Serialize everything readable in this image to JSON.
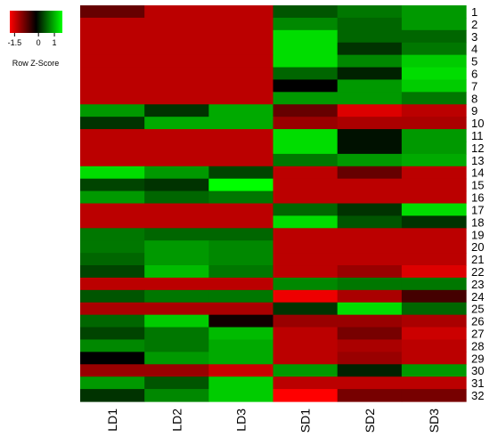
{
  "chart_data": {
    "type": "heatmap",
    "title": "",
    "columns": [
      "LD1",
      "LD2",
      "LD3",
      "SD1",
      "SD2",
      "SD3"
    ],
    "rows": [
      "1",
      "2",
      "3",
      "4",
      "5",
      "6",
      "7",
      "8",
      "9",
      "10",
      "11",
      "12",
      "13",
      "14",
      "15",
      "16",
      "17",
      "18",
      "19",
      "20",
      "21",
      "22",
      "23",
      "24",
      "25",
      "26",
      "27",
      "28",
      "29",
      "30",
      "31",
      "32"
    ],
    "values": [
      [
        -0.6,
        -1.1,
        -1.1,
        0.5,
        0.7,
        0.9
      ],
      [
        -1.1,
        -1.1,
        -1.1,
        0.8,
        0.6,
        0.9
      ],
      [
        -1.1,
        -1.1,
        -1.1,
        1.3,
        0.6,
        0.6
      ],
      [
        -1.1,
        -1.1,
        -1.1,
        1.3,
        0.3,
        0.7
      ],
      [
        -1.1,
        -1.1,
        -1.1,
        1.3,
        0.8,
        1.2
      ],
      [
        -1.1,
        -1.1,
        -1.1,
        0.6,
        0.2,
        1.3
      ],
      [
        -1.1,
        -1.1,
        -1.1,
        0.0,
        0.9,
        1.2
      ],
      [
        -1.1,
        -1.1,
        -1.1,
        0.9,
        0.9,
        0.7
      ],
      [
        0.9,
        0.3,
        1.0,
        -0.6,
        -1.3,
        -1.1
      ],
      [
        0.3,
        1.0,
        1.0,
        -0.9,
        -1.0,
        -1.0
      ],
      [
        -1.1,
        -1.1,
        -1.1,
        1.3,
        0.1,
        0.9
      ],
      [
        -1.1,
        -1.1,
        -1.1,
        1.3,
        0.1,
        0.9
      ],
      [
        -1.1,
        -1.1,
        -1.1,
        0.7,
        0.9,
        1.0
      ],
      [
        1.3,
        0.9,
        0.4,
        -1.1,
        -0.6,
        -1.1
      ],
      [
        0.4,
        0.3,
        1.5,
        -1.1,
        -1.1,
        -1.1
      ],
      [
        0.9,
        0.6,
        0.7,
        -1.1,
        -1.1,
        -1.1
      ],
      [
        -1.1,
        -1.1,
        -1.1,
        0.6,
        0.3,
        1.3
      ],
      [
        -1.1,
        -1.1,
        -1.1,
        1.3,
        0.5,
        0.3
      ],
      [
        0.7,
        0.6,
        0.6,
        -1.1,
        -1.1,
        -1.1
      ],
      [
        0.7,
        0.9,
        0.8,
        -1.1,
        -1.1,
        -1.1
      ],
      [
        0.6,
        0.9,
        0.8,
        -1.1,
        -1.1,
        -1.1
      ],
      [
        0.4,
        1.1,
        0.7,
        -1.1,
        -0.9,
        -1.3
      ],
      [
        -1.1,
        -1.1,
        -1.1,
        0.8,
        0.7,
        0.7
      ],
      [
        0.5,
        0.7,
        0.7,
        -1.4,
        -1.0,
        -0.4
      ],
      [
        -1.0,
        -1.0,
        -1.0,
        0.3,
        1.3,
        0.6
      ],
      [
        0.6,
        1.2,
        -0.1,
        -0.9,
        -0.9,
        -1.0
      ],
      [
        0.4,
        0.7,
        1.1,
        -1.1,
        -0.7,
        -1.2
      ],
      [
        0.8,
        0.7,
        1.0,
        -1.1,
        -1.0,
        -1.1
      ],
      [
        0.0,
        0.9,
        1.0,
        -1.1,
        -0.9,
        -1.1
      ],
      [
        -0.9,
        -0.9,
        -1.2,
        0.9,
        0.2,
        0.9
      ],
      [
        0.9,
        0.5,
        1.2,
        -1.1,
        -1.1,
        -1.1
      ],
      [
        0.3,
        0.8,
        1.2,
        -1.6,
        -0.7,
        -0.7
      ]
    ],
    "color_key": {
      "title": "Row Z-Score",
      "ticks": [
        "-1.5",
        "0",
        "1"
      ],
      "range": [
        -1.8,
        1.5
      ],
      "low_color": "#ff0000",
      "mid_color": "#000000",
      "high_color": "#00ff00"
    },
    "legend_position": "top-left"
  }
}
